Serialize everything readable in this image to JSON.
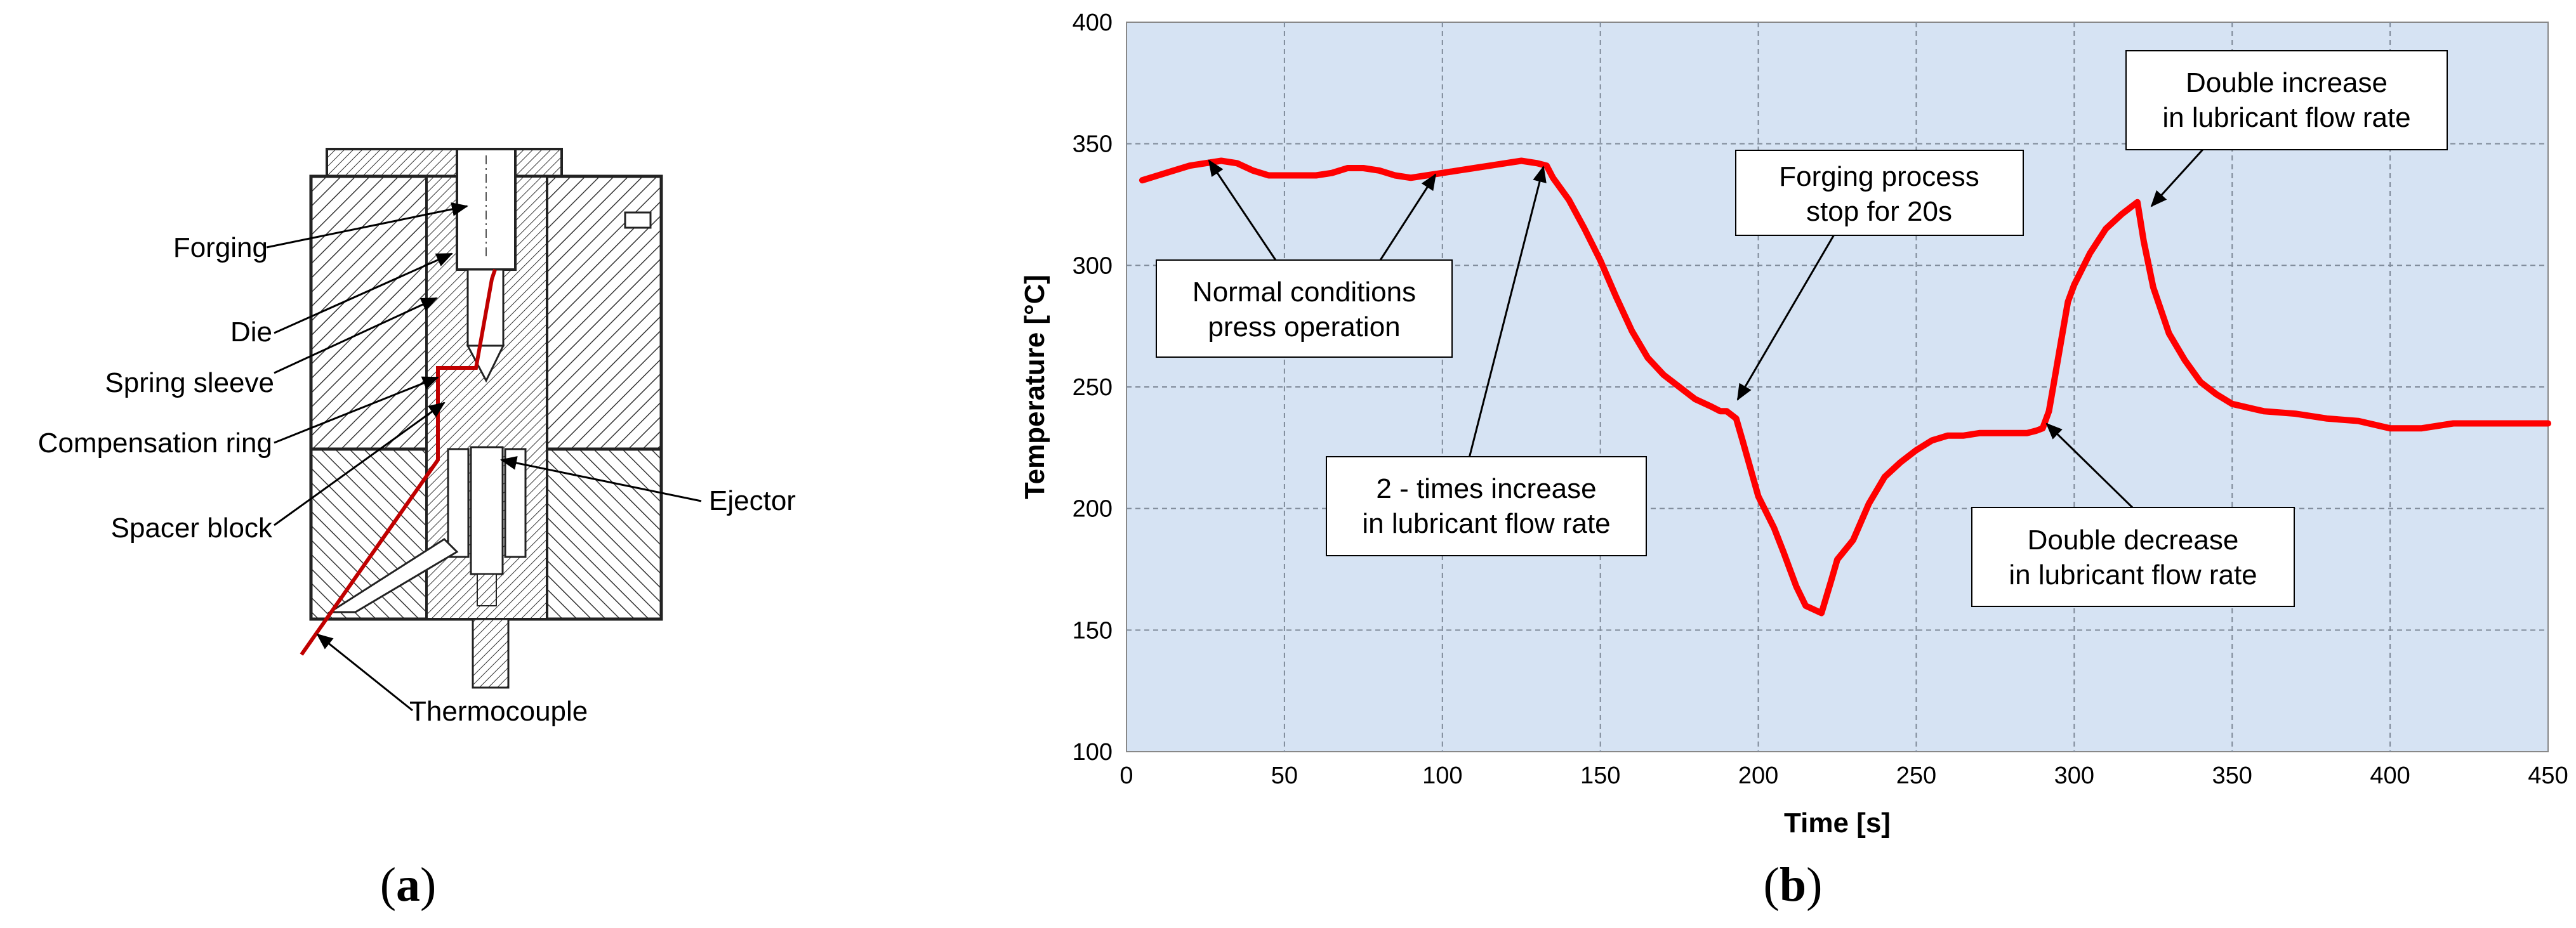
{
  "panel_a": {
    "caption_letter": "a",
    "labels": {
      "forging": "Forging",
      "die": "Die",
      "spring_sleeve": "Spring sleeve",
      "compensation_ring": "Compensation ring",
      "spacer_block": "Spacer block",
      "ejector": "Ejector",
      "thermocouple": "Thermocouple"
    }
  },
  "panel_b": {
    "caption_letter": "b",
    "annotations": {
      "normal": [
        "Normal conditions",
        "press operation"
      ],
      "two_times": [
        "2 - times increase",
        "in lubricant flow rate"
      ],
      "stop": [
        "Forging process",
        "stop for 20s"
      ],
      "double_decrease": [
        "Double decrease",
        "in lubricant flow rate"
      ],
      "double_increase": [
        "Double increase",
        "in lubricant flow rate"
      ]
    }
  },
  "colors": {
    "line": "#ff0000",
    "plot_bg": "#d6e3f3",
    "grid": "#7f8a99",
    "thermo": "#c00000"
  },
  "chart_data": {
    "type": "line",
    "title": "",
    "xlabel": "Time [s]",
    "ylabel": "Temperature [°C]",
    "xlim": [
      0,
      450
    ],
    "ylim": [
      100,
      400
    ],
    "xticks": [
      0,
      50,
      100,
      150,
      200,
      250,
      300,
      350,
      400,
      450
    ],
    "yticks": [
      100,
      150,
      200,
      250,
      300,
      350,
      400
    ],
    "grid": true,
    "series": [
      {
        "name": "Temperature",
        "x": [
          5,
          10,
          15,
          20,
          25,
          30,
          35,
          40,
          45,
          50,
          55,
          60,
          65,
          70,
          75,
          80,
          85,
          90,
          95,
          100,
          105,
          110,
          115,
          120,
          125,
          130,
          133,
          135,
          140,
          145,
          150,
          155,
          160,
          165,
          170,
          175,
          180,
          185,
          188,
          190,
          193,
          195,
          200,
          205,
          208,
          210,
          212,
          215,
          220,
          223,
          225,
          230,
          235,
          240,
          245,
          250,
          255,
          260,
          265,
          270,
          275,
          280,
          285,
          288,
          290,
          292,
          294,
          296,
          298,
          300,
          305,
          310,
          315,
          318,
          320,
          322,
          325,
          330,
          335,
          340,
          345,
          350,
          360,
          370,
          380,
          390,
          400,
          405,
          410,
          420,
          430,
          440,
          450
        ],
        "y": [
          335,
          337,
          339,
          341,
          342,
          343,
          342,
          339,
          337,
          337,
          337,
          337,
          338,
          340,
          340,
          339,
          337,
          336,
          337,
          338,
          339,
          340,
          341,
          342,
          343,
          342,
          341,
          336,
          327,
          315,
          302,
          287,
          273,
          262,
          255,
          250,
          245,
          242,
          240,
          240,
          237,
          228,
          205,
          192,
          182,
          175,
          168,
          160,
          157,
          170,
          179,
          187,
          202,
          213,
          219,
          224,
          228,
          230,
          230,
          231,
          231,
          231,
          231,
          232,
          233,
          240,
          255,
          270,
          285,
          292,
          305,
          315,
          321,
          324,
          326,
          310,
          291,
          272,
          261,
          252,
          247,
          243,
          240,
          239,
          237,
          236,
          233,
          233,
          233,
          235,
          235,
          235,
          235
        ]
      }
    ],
    "x_tick_labels": [
      "0",
      "50",
      "100",
      "150",
      "200",
      "250",
      "300",
      "350",
      "400",
      "450"
    ],
    "y_tick_labels": [
      "100",
      "150",
      "200",
      "250",
      "300",
      "350",
      "400"
    ]
  }
}
